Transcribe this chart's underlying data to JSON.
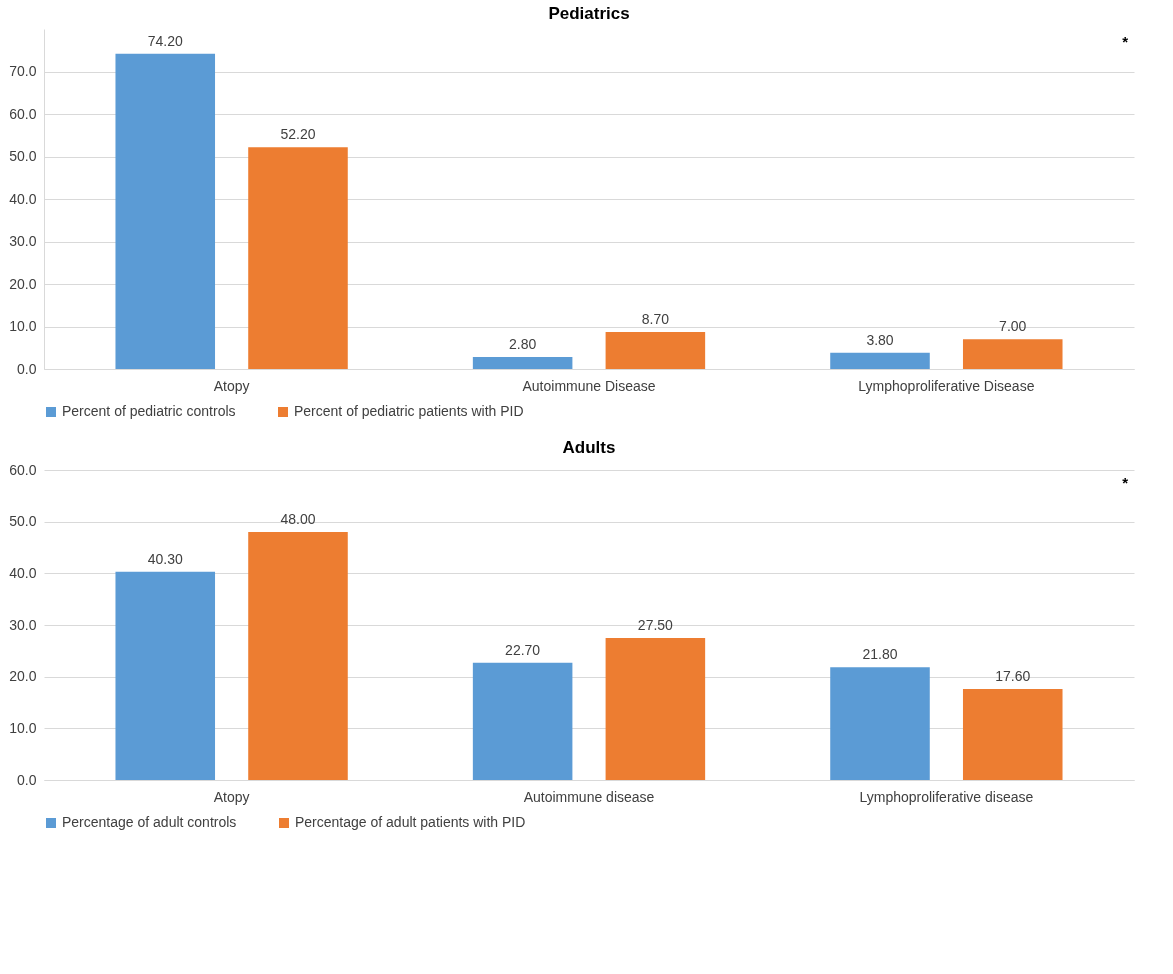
{
  "chart_data": [
    {
      "type": "bar",
      "title": "Pediatrics",
      "categories": [
        "Atopy",
        "Autoimmune Disease",
        "Lymphoproliferative Disease"
      ],
      "series": [
        {
          "name": "Percent of pediatric controls",
          "color": "#5b9bd5",
          "values": [
            74.2,
            2.8,
            3.8
          ],
          "value_labels": [
            "74.20",
            "2.80",
            "3.80"
          ]
        },
        {
          "name": "Percent of pediatric patients with PID",
          "color": "#ed7d31",
          "values": [
            52.2,
            8.7,
            7.0
          ],
          "value_labels": [
            "52.20",
            "8.70",
            "7.00"
          ]
        }
      ],
      "ylim": [
        0,
        80
      ],
      "yticks": [
        {
          "value": 0,
          "label": "0.0"
        },
        {
          "value": 10,
          "label": "10.0"
        },
        {
          "value": 20,
          "label": "20.0"
        },
        {
          "value": 30,
          "label": "30.0"
        },
        {
          "value": 40,
          "label": "40.0"
        },
        {
          "value": 50,
          "label": "50.0"
        },
        {
          "value": 60,
          "label": "60.0"
        },
        {
          "value": 70,
          "label": "70.0"
        }
      ],
      "grid": "y",
      "legend": "bottom",
      "annotations": [
        "*"
      ]
    },
    {
      "type": "bar",
      "title": "Adults",
      "categories": [
        "Atopy",
        "Autoimmune disease",
        "Lymphoproliferative disease"
      ],
      "series": [
        {
          "name": "Percentage of adult controls",
          "color": "#5b9bd5",
          "values": [
            40.3,
            22.7,
            21.8
          ],
          "value_labels": [
            "40.30",
            "22.70",
            "21.80"
          ]
        },
        {
          "name": "Percentage of adult patients with PID",
          "color": "#ed7d31",
          "values": [
            48.0,
            27.5,
            17.6
          ],
          "value_labels": [
            "48.00",
            "27.50",
            "17.60"
          ]
        }
      ],
      "ylim": [
        0,
        60
      ],
      "yticks": [
        {
          "value": 0,
          "label": "0.0"
        },
        {
          "value": 10,
          "label": "10.0"
        },
        {
          "value": 20,
          "label": "20.0"
        },
        {
          "value": 30,
          "label": "30.0"
        },
        {
          "value": 40,
          "label": "40.0"
        },
        {
          "value": 50,
          "label": "50.0"
        },
        {
          "value": 60,
          "label": "60.0"
        }
      ],
      "grid": "y",
      "legend": "bottom",
      "annotations": [
        "*"
      ]
    }
  ]
}
